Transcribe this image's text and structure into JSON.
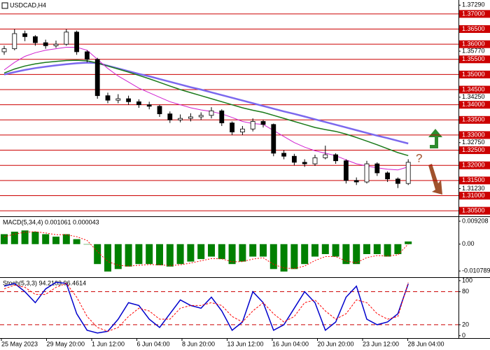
{
  "chart_data": [
    {
      "type": "candlestick",
      "title": "USDCAD,H4",
      "open": [
        1.3575,
        1.3585,
        1.3635,
        1.3625,
        1.3605,
        1.3595,
        1.36,
        1.364,
        1.3575,
        1.355,
        1.343,
        1.3415,
        1.342,
        1.341,
        1.34,
        1.3395,
        1.337,
        1.335,
        1.3355,
        1.336,
        1.3365,
        1.338,
        1.334,
        1.331,
        1.332,
        1.3345,
        1.3335,
        1.324,
        1.323,
        1.321,
        1.3205,
        1.3225,
        1.3235,
        1.3215,
        1.315,
        1.3145,
        1.3205,
        1.3175,
        1.3155,
        1.314
      ],
      "high": [
        1.3595,
        1.365,
        1.3645,
        1.363,
        1.3615,
        1.3612,
        1.365,
        1.3645,
        1.358,
        1.3555,
        1.344,
        1.3435,
        1.343,
        1.3418,
        1.341,
        1.34,
        1.3378,
        1.3368,
        1.3372,
        1.3375,
        1.3392,
        1.3385,
        1.3345,
        1.333,
        1.3355,
        1.335,
        1.3338,
        1.325,
        1.3238,
        1.322,
        1.3235,
        1.3265,
        1.324,
        1.322,
        1.316,
        1.3215,
        1.321,
        1.318,
        1.316,
        1.322
      ],
      "low": [
        1.3565,
        1.358,
        1.361,
        1.3595,
        1.3585,
        1.3588,
        1.3595,
        1.3565,
        1.354,
        1.342,
        1.3405,
        1.3405,
        1.34,
        1.339,
        1.3385,
        1.336,
        1.334,
        1.3342,
        1.3345,
        1.335,
        1.3355,
        1.333,
        1.33,
        1.33,
        1.3312,
        1.3325,
        1.323,
        1.322,
        1.32,
        1.3195,
        1.3198,
        1.322,
        1.3205,
        1.314,
        1.3135,
        1.314,
        1.3165,
        1.3145,
        1.3125,
        1.3135
      ],
      "close": [
        1.3585,
        1.3635,
        1.3625,
        1.3605,
        1.3595,
        1.36,
        1.364,
        1.3575,
        1.355,
        1.343,
        1.3415,
        1.342,
        1.341,
        1.34,
        1.3395,
        1.337,
        1.335,
        1.3355,
        1.336,
        1.3365,
        1.338,
        1.334,
        1.331,
        1.332,
        1.3345,
        1.3335,
        1.324,
        1.323,
        1.321,
        1.3205,
        1.3225,
        1.3235,
        1.3215,
        1.315,
        1.3145,
        1.3205,
        1.3175,
        1.3155,
        1.314,
        1.321
      ],
      "lines": [
        {
          "color": "#7b68ee",
          "values": [
            1.35,
            1.3508,
            1.3515,
            1.3521,
            1.3526,
            1.353,
            1.3534,
            1.3537,
            1.3539,
            1.3538,
            1.3529,
            1.352,
            1.3511,
            1.3502,
            1.3494,
            1.3485,
            1.3476,
            1.3467,
            1.3458,
            1.345,
            1.3441,
            1.3432,
            1.3423,
            1.3414,
            1.3405,
            1.3396,
            1.3387,
            1.3378,
            1.337,
            1.3361,
            1.3352,
            1.3343,
            1.3334,
            1.3325,
            1.3316,
            1.3307,
            1.3298,
            1.329,
            1.3281,
            1.3272
          ]
        },
        {
          "color": "#1a7a1a",
          "values": [
            1.3505,
            1.3518,
            1.3528,
            1.3535,
            1.354,
            1.3543,
            1.3546,
            1.3547,
            1.3545,
            1.3538,
            1.3528,
            1.3518,
            1.3508,
            1.3497,
            1.3486,
            1.3474,
            1.3462,
            1.345,
            1.344,
            1.343,
            1.342,
            1.341,
            1.34,
            1.339,
            1.3382,
            1.3375,
            1.3365,
            1.3355,
            1.3345,
            1.3335,
            1.3325,
            1.3318,
            1.3312,
            1.3303,
            1.3292,
            1.328,
            1.3268,
            1.3255,
            1.3242,
            1.3232
          ]
        },
        {
          "color": "#d020d0",
          "values": [
            1.3515,
            1.354,
            1.356,
            1.3572,
            1.358,
            1.3585,
            1.359,
            1.359,
            1.358,
            1.355,
            1.352,
            1.3495,
            1.3475,
            1.3455,
            1.344,
            1.3425,
            1.341,
            1.34,
            1.339,
            1.3383,
            1.3378,
            1.337,
            1.3358,
            1.3345,
            1.3338,
            1.3335,
            1.3315,
            1.3295,
            1.3275,
            1.326,
            1.3248,
            1.324,
            1.3232,
            1.3218,
            1.3205,
            1.3198,
            1.3192,
            1.3187,
            1.3185,
            1.3195
          ]
        }
      ],
      "ylim": [
        1.3034,
        1.3746
      ],
      "yticks": [
        {
          "value": 1.3729,
          "label": "1.37290"
        },
        {
          "value": 1.3577,
          "label": "1.35770"
        },
        {
          "value": 1.3425,
          "label": "1.34250"
        },
        {
          "value": 1.3275,
          "label": "1.32750"
        },
        {
          "value": 1.3123,
          "label": "1.31230"
        }
      ],
      "levels": [
        {
          "value": 1.37,
          "label": "1.37000"
        },
        {
          "value": 1.365,
          "label": "1.36500"
        },
        {
          "value": 1.36,
          "label": "1.36000"
        },
        {
          "value": 1.355,
          "label": "1.35500"
        },
        {
          "value": 1.35,
          "label": "1.35000"
        },
        {
          "value": 1.345,
          "label": "1.34500"
        },
        {
          "value": 1.34,
          "label": "1.34000"
        },
        {
          "value": 1.335,
          "label": "1.33500"
        },
        {
          "value": 1.33,
          "label": "1.33000"
        },
        {
          "value": 1.325,
          "label": "1.32500"
        },
        {
          "value": 1.32,
          "label": "1.32000"
        },
        {
          "value": 1.315,
          "label": "1.31500"
        },
        {
          "value": 1.31,
          "label": "1.31000"
        },
        {
          "value": 1.305,
          "label": "1.30500"
        }
      ],
      "level_color": "#cc0000",
      "annotation": "?"
    },
    {
      "type": "bar",
      "title": "MACD(5,34,4) 0.001061 0.000043",
      "color": "#008000",
      "values": [
        0.004,
        0.005,
        0.0055,
        0.005,
        0.004,
        0.003,
        0.004,
        0.002,
        0.0,
        -0.008,
        -0.011,
        -0.01,
        -0.009,
        -0.008,
        -0.008,
        -0.0085,
        -0.009,
        -0.008,
        -0.007,
        -0.006,
        -0.005,
        -0.006,
        -0.008,
        -0.007,
        -0.005,
        -0.005,
        -0.01,
        -0.011,
        -0.01,
        -0.008,
        -0.005,
        -0.004,
        -0.005,
        -0.008,
        -0.008,
        -0.004,
        -0.004,
        -0.005,
        -0.004,
        0.001061
      ],
      "signal": {
        "color": "#ff0000",
        "values": [
          0.003,
          0.004,
          0.0048,
          0.005,
          0.0045,
          0.0038,
          0.0038,
          0.003,
          0.0015,
          -0.003,
          -0.007,
          -0.0085,
          -0.0088,
          -0.0085,
          -0.0082,
          -0.0083,
          -0.0086,
          -0.0083,
          -0.0076,
          -0.0067,
          -0.0058,
          -0.0059,
          -0.0071,
          -0.007,
          -0.006,
          -0.0055,
          -0.0081,
          -0.0096,
          -0.0098,
          -0.0088,
          -0.0066,
          -0.005,
          -0.005,
          -0.0068,
          -0.0075,
          -0.0054,
          -0.0046,
          -0.0048,
          -0.0043,
          4.3e-05
        ]
      },
      "ylim": [
        -0.013,
        0.0109
      ],
      "yticks": [
        0.009208,
        {
          "value": 0,
          "label": "0.00"
        },
        -0.010789
      ]
    },
    {
      "type": "line",
      "title": "Stoch(5,3,3) 94.2103 96.4614",
      "series": [
        {
          "color": "#0000cc",
          "values": [
            90,
            95,
            80,
            60,
            85,
            97,
            95,
            40,
            10,
            5,
            8,
            30,
            60,
            55,
            30,
            15,
            40,
            65,
            55,
            50,
            70,
            45,
            10,
            25,
            80,
            60,
            10,
            20,
            50,
            80,
            60,
            10,
            25,
            70,
            90,
            30,
            20,
            25,
            40,
            94.2103
          ]
        },
        {
          "color": "#ff0000",
          "values": [
            85,
            92,
            88,
            75,
            75,
            88,
            95,
            70,
            35,
            15,
            8,
            15,
            35,
            50,
            45,
            30,
            30,
            50,
            55,
            55,
            60,
            55,
            35,
            25,
            45,
            60,
            40,
            25,
            35,
            60,
            65,
            45,
            30,
            40,
            65,
            60,
            40,
            30,
            35,
            96.4614
          ]
        }
      ],
      "ylim": [
        -3,
        105
      ],
      "yticks": [
        100,
        80,
        20,
        0
      ],
      "levels": [
        80,
        20
      ],
      "level_color": "#cc0000"
    }
  ],
  "x_labels": [
    "25 May 2023",
    "29 May 20:00",
    "1 Jun 12:00",
    "6 Jun 04:00",
    "8 Jun 20:00",
    "13 Jun 12:00",
    "16 Jun 04:00",
    "20 Jun 20:00",
    "23 Jun 12:00",
    "28 Jun 04:00"
  ]
}
